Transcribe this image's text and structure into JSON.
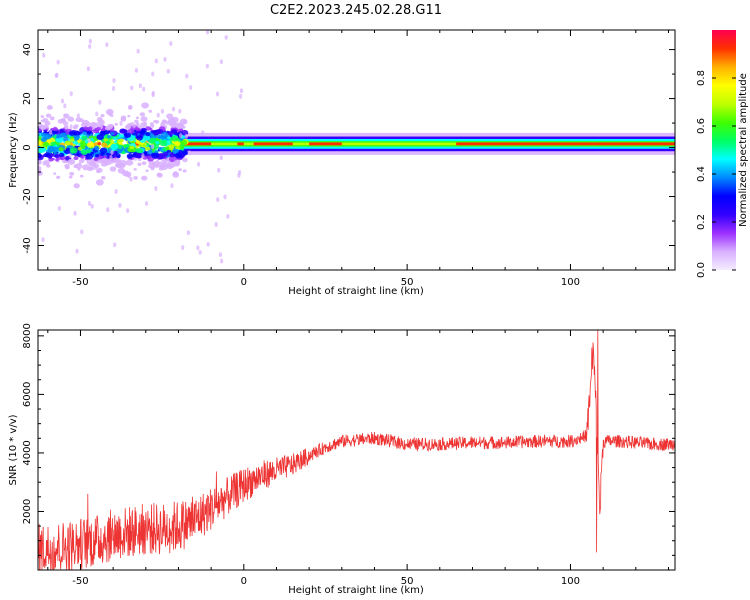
{
  "title": "C2E2.2023.245.02.28.G11",
  "chart_data": [
    {
      "type": "heatmap",
      "xlabel": "Height of straight line (km)",
      "ylabel": "Frequency (Hz)",
      "xlim": [
        -63,
        132
      ],
      "ylim": [
        -50,
        48
      ],
      "xticks": [
        -50,
        0,
        50,
        100
      ],
      "yticks": [
        -40,
        -20,
        0,
        20,
        40
      ],
      "grid": false,
      "colorbar": {
        "label": "Normalized spectral amplitude",
        "range": [
          0.0,
          1.0
        ],
        "ticks": [
          "0.0",
          "0.2",
          "0.4",
          "0.6",
          "0.8"
        ],
        "colors": [
          "#f4ecff",
          "#d9b0ff",
          "#9b30ff",
          "#3300ff",
          "#0000ff",
          "#0088ff",
          "#00ffff",
          "#00ff60",
          "#40ff00",
          "#c0ff00",
          "#ffff00",
          "#ffb000",
          "#ff3000",
          "#ff0050"
        ]
      },
      "features": {
        "band_center_hz": 1.5,
        "band_width_hz": 6,
        "noisy_region_km": [
          -63,
          -20
        ]
      }
    },
    {
      "type": "line",
      "xlabel": "Height of straight line (km)",
      "ylabel": "SNR (10 * v/v)",
      "xlim": [
        -63,
        132
      ],
      "ylim": [
        0,
        8200
      ],
      "xticks": [
        -50,
        0,
        50,
        100
      ],
      "yticks": [
        2000,
        4000,
        6000,
        8000
      ],
      "grid": false,
      "color": "#ee3333",
      "x": [
        -63,
        -55,
        -50,
        -45,
        -40,
        -35,
        -30,
        -25,
        -20,
        -15,
        -10,
        -5,
        0,
        5,
        10,
        15,
        20,
        25,
        30,
        35,
        40,
        50,
        60,
        70,
        80,
        90,
        100,
        103,
        105,
        106,
        107,
        108,
        109,
        110,
        112,
        115,
        120,
        125,
        132
      ],
      "y": [
        700,
        800,
        900,
        1000,
        1200,
        1300,
        1400,
        1400,
        1500,
        1700,
        2100,
        2500,
        2900,
        3200,
        3400,
        3600,
        3900,
        4200,
        4400,
        4450,
        4500,
        4300,
        4300,
        4350,
        4350,
        4400,
        4400,
        4500,
        4600,
        6000,
        7500,
        5000,
        2000,
        4400,
        4400,
        4400,
        4350,
        4300,
        4300
      ],
      "spikes": [
        {
          "x": 106.5,
          "y": 7600
        },
        {
          "x": 108.4,
          "y": 8300
        },
        {
          "x": 108.0,
          "y": 600
        }
      ]
    }
  ]
}
